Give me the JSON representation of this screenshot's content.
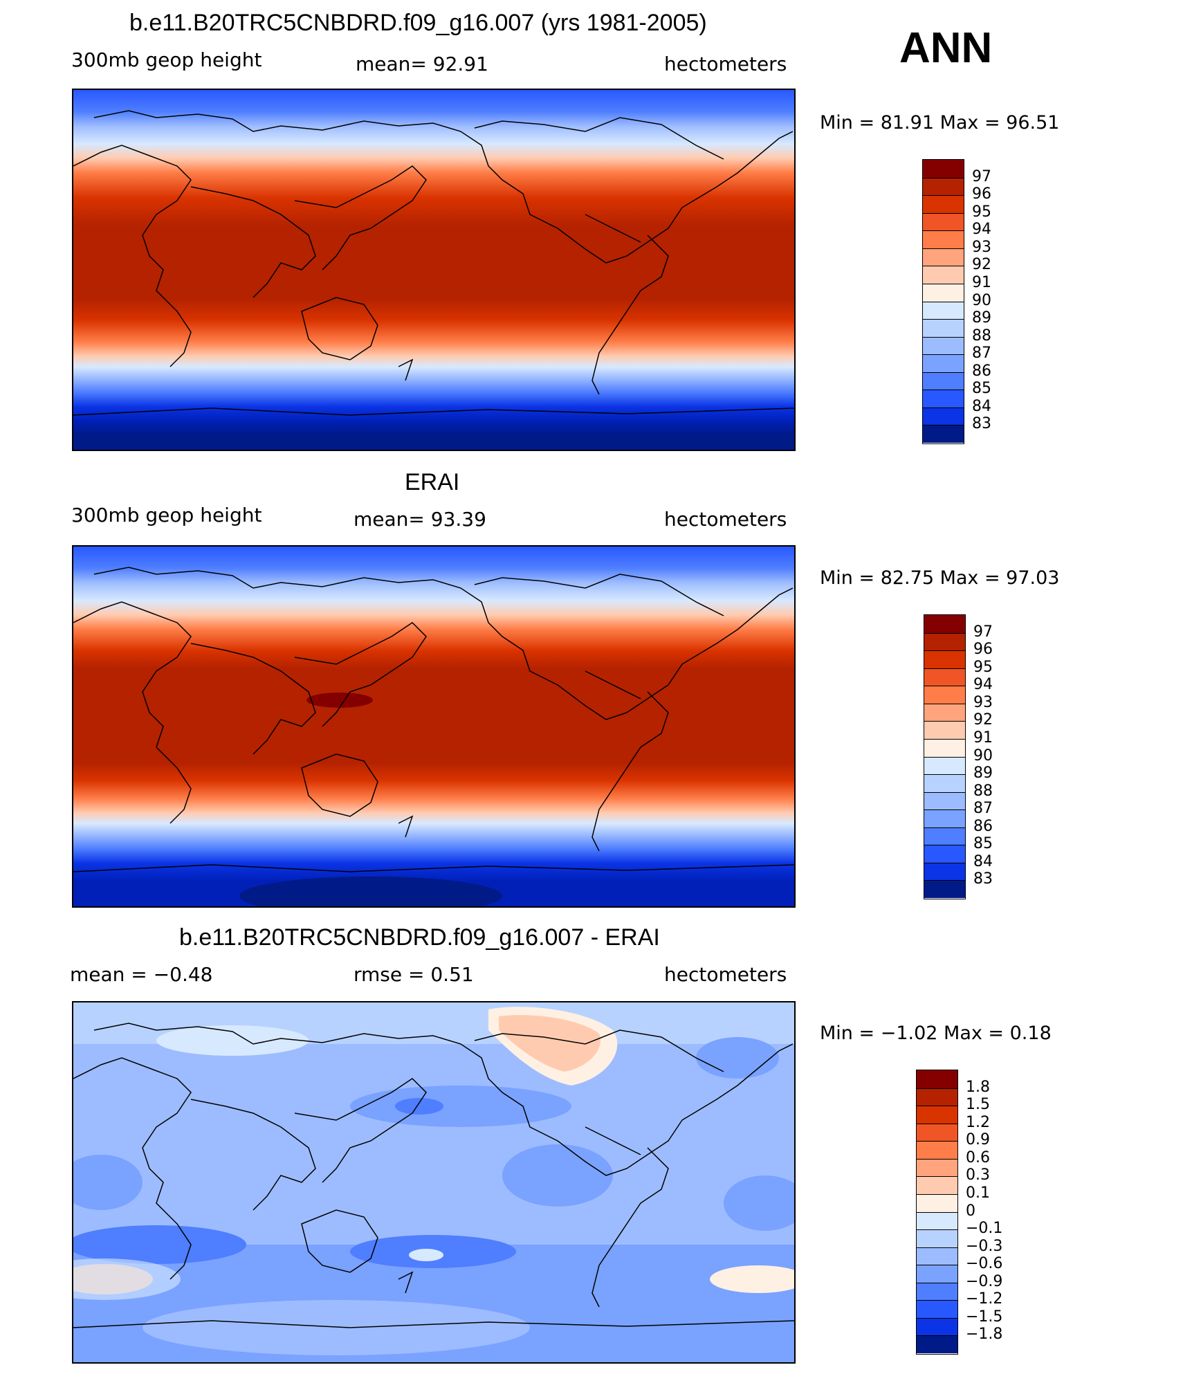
{
  "colors": {
    "reds": [
      "#840000",
      "#b42200",
      "#d93300",
      "#f05525",
      "#ff7d48",
      "#ffa47c",
      "#ffcbb0",
      "#fff0e4"
    ],
    "blues": [
      "#d7e9ff",
      "#b8d2ff",
      "#9dbcff",
      "#7aa2ff",
      "#4f7eff",
      "#2858ff",
      "#0b34e6",
      "#0020b8",
      "#001a88"
    ]
  },
  "panels": [
    {
      "title": "b.e11.B20TRC5CNBDRD.f09_g16.007 (yrs 1981-2005)",
      "left_label": "300mb  geop  height",
      "center_label": "mean=   92.91",
      "right_label": "hectometers",
      "minmax": "Min  =   81.91  Max  =   96.51",
      "colorbar_labels": [
        "97",
        "96",
        "95",
        "94",
        "93",
        "92",
        "91",
        "90",
        "89",
        "88",
        "87",
        "86",
        "85",
        "84",
        "83"
      ]
    },
    {
      "title": "ERAI",
      "left_label": "300mb  geop  height",
      "center_label": "mean=   93.39",
      "right_label": "hectometers",
      "minmax": "Min  =   82.75  Max  =   97.03",
      "colorbar_labels": [
        "97",
        "96",
        "95",
        "94",
        "93",
        "92",
        "91",
        "90",
        "89",
        "88",
        "87",
        "86",
        "85",
        "84",
        "83"
      ]
    },
    {
      "title": "b.e11.B20TRC5CNBDRD.f09_g16.007 - ERAI",
      "left_label": "mean  =    −0.48",
      "center_label": "rmse  =     0.51",
      "right_label": "hectometers",
      "minmax": "Min  =   −1.02  Max  =     0.18",
      "colorbar_labels": [
        "1.8",
        "1.5",
        "1.2",
        "0.9",
        "0.6",
        "0.3",
        "0.1",
        "0",
        "−0.1",
        "−0.3",
        "−0.6",
        "−0.9",
        "−1.2",
        "−1.5",
        "−1.8"
      ]
    }
  ],
  "season_label": "ANN"
}
